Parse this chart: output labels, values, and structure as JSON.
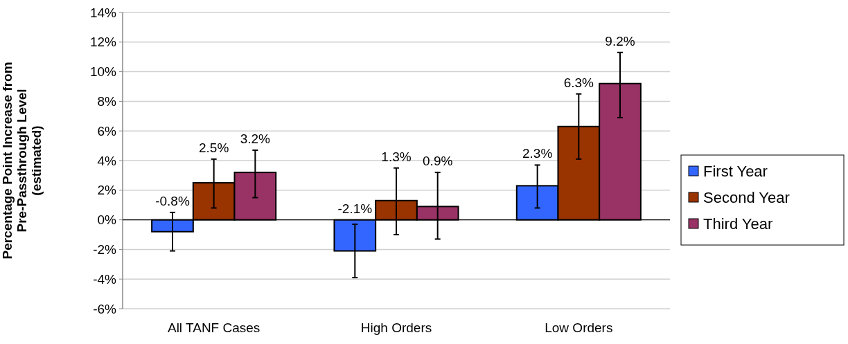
{
  "chart_data": {
    "type": "bar",
    "ylabel": "Percentage Point Increase from Pre-Passthrough Level (estimated)",
    "categories": [
      "All TANF Cases",
      "High Orders",
      "Low Orders"
    ],
    "series": [
      {
        "name": "First Year",
        "color": "#3366ff",
        "values": [
          -0.8,
          -2.1,
          2.3
        ],
        "errors": [
          [
            -2.1,
            0.5
          ],
          [
            -3.9,
            -0.3
          ],
          [
            0.8,
            3.7
          ]
        ],
        "value_labels": [
          "-0.8%",
          "-2.1%",
          "2.3%"
        ]
      },
      {
        "name": "Second Year",
        "color": "#993300",
        "values": [
          2.5,
          1.3,
          6.3
        ],
        "errors": [
          [
            0.8,
            4.1
          ],
          [
            -1.0,
            3.5
          ],
          [
            4.1,
            8.5
          ]
        ],
        "value_labels": [
          "2.5%",
          "1.3%",
          "6.3%"
        ]
      },
      {
        "name": "Third Year",
        "color": "#993366",
        "values": [
          3.2,
          0.9,
          9.2
        ],
        "errors": [
          [
            1.5,
            4.7
          ],
          [
            -1.3,
            3.2
          ],
          [
            6.9,
            11.3
          ]
        ],
        "value_labels": [
          "3.2%",
          "0.9%",
          "9.2%"
        ]
      }
    ],
    "ylim": [
      -6,
      14
    ],
    "yticks": [
      {
        "value": -6,
        "label": "-6%"
      },
      {
        "value": -4,
        "label": "-4%"
      },
      {
        "value": -2,
        "label": "-2%"
      },
      {
        "value": 0,
        "label": "0%"
      },
      {
        "value": 2,
        "label": "2%"
      },
      {
        "value": 4,
        "label": "4%"
      },
      {
        "value": 6,
        "label": "6%"
      },
      {
        "value": 8,
        "label": "8%"
      },
      {
        "value": 10,
        "label": "10%"
      },
      {
        "value": 12,
        "label": "12%"
      },
      {
        "value": 14,
        "label": "14%"
      }
    ],
    "grid": "y",
    "legend": "right"
  }
}
